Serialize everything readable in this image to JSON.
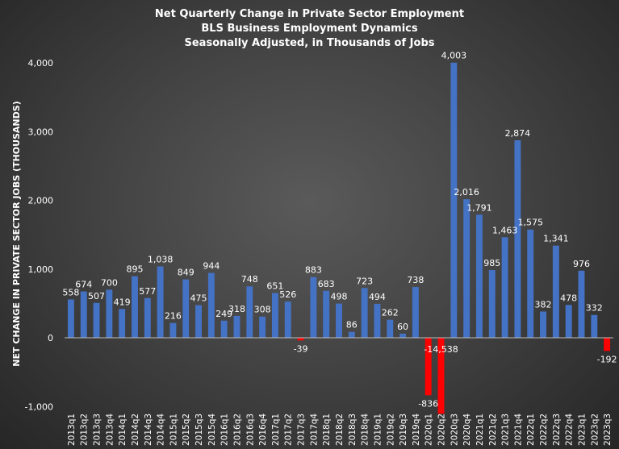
{
  "chart_data": {
    "type": "bar",
    "title": "Net Quarterly Change in Private Sector Employment",
    "subtitle_1": "BLS Business Employment Dynamics",
    "subtitle_2": "Seasonally Adjusted, in Thousands of Jobs",
    "ylabel": "NET CHANGE IN PRIVATE SECTOR JOBS (THOUSANDS)",
    "xlabel": "",
    "ylim": [
      -1000,
      4000
    ],
    "yticks": [
      -1000,
      0,
      1000,
      2000,
      3000,
      4000
    ],
    "ytick_labels": [
      "-1,000",
      "0",
      "1,000",
      "2,000",
      "3,000",
      "4,000"
    ],
    "grid": false,
    "colors": {
      "positive": "#4472c4",
      "negative": "#ff0000",
      "text": "#ffffff"
    },
    "categories": [
      "2013q1",
      "2013q2",
      "2013q3",
      "2013q4",
      "2014q1",
      "2014q2",
      "2014q3",
      "2014q4",
      "2015q1",
      "2015q2",
      "2015q3",
      "2015q4",
      "2016q1",
      "2016q2",
      "2016q3",
      "2016q4",
      "2017q1",
      "2017q2",
      "2017q3",
      "2017q4",
      "2018q1",
      "2018q2",
      "2018q3",
      "2018q4",
      "2019q1",
      "2019q2",
      "2019q3",
      "2019q4",
      "2020q1",
      "2020q2",
      "2020q3",
      "2020q4",
      "2021q1",
      "2021q2",
      "2021q3",
      "2021q4",
      "2022q1",
      "2022q2",
      "2022q3",
      "2022q4",
      "2023q1",
      "2023q2",
      "2023q3"
    ],
    "values": [
      558,
      674,
      507,
      700,
      419,
      895,
      577,
      1038,
      216,
      849,
      475,
      944,
      249,
      318,
      748,
      308,
      651,
      526,
      -39,
      883,
      683,
      498,
      86,
      723,
      494,
      262,
      60,
      738,
      -836,
      -14538,
      4003,
      2016,
      1791,
      985,
      1463,
      2874,
      1575,
      382,
      1341,
      478,
      976,
      332,
      -192
    ],
    "data_labels": [
      "558",
      "674",
      "507",
      "700",
      "419",
      "895",
      "577",
      "1,038",
      "216",
      "849",
      "475",
      "944",
      "249",
      "318",
      "748",
      "308",
      "651",
      "526",
      "-39",
      "883",
      "683",
      "498",
      "86",
      "723",
      "494",
      "262",
      "60",
      "738",
      "-836",
      "-14,538",
      "4,003",
      "2,016",
      "1,791",
      "985",
      "1,463",
      "2,874",
      "1,575",
      "382",
      "1,341",
      "478",
      "976",
      "332",
      "-192"
    ]
  }
}
